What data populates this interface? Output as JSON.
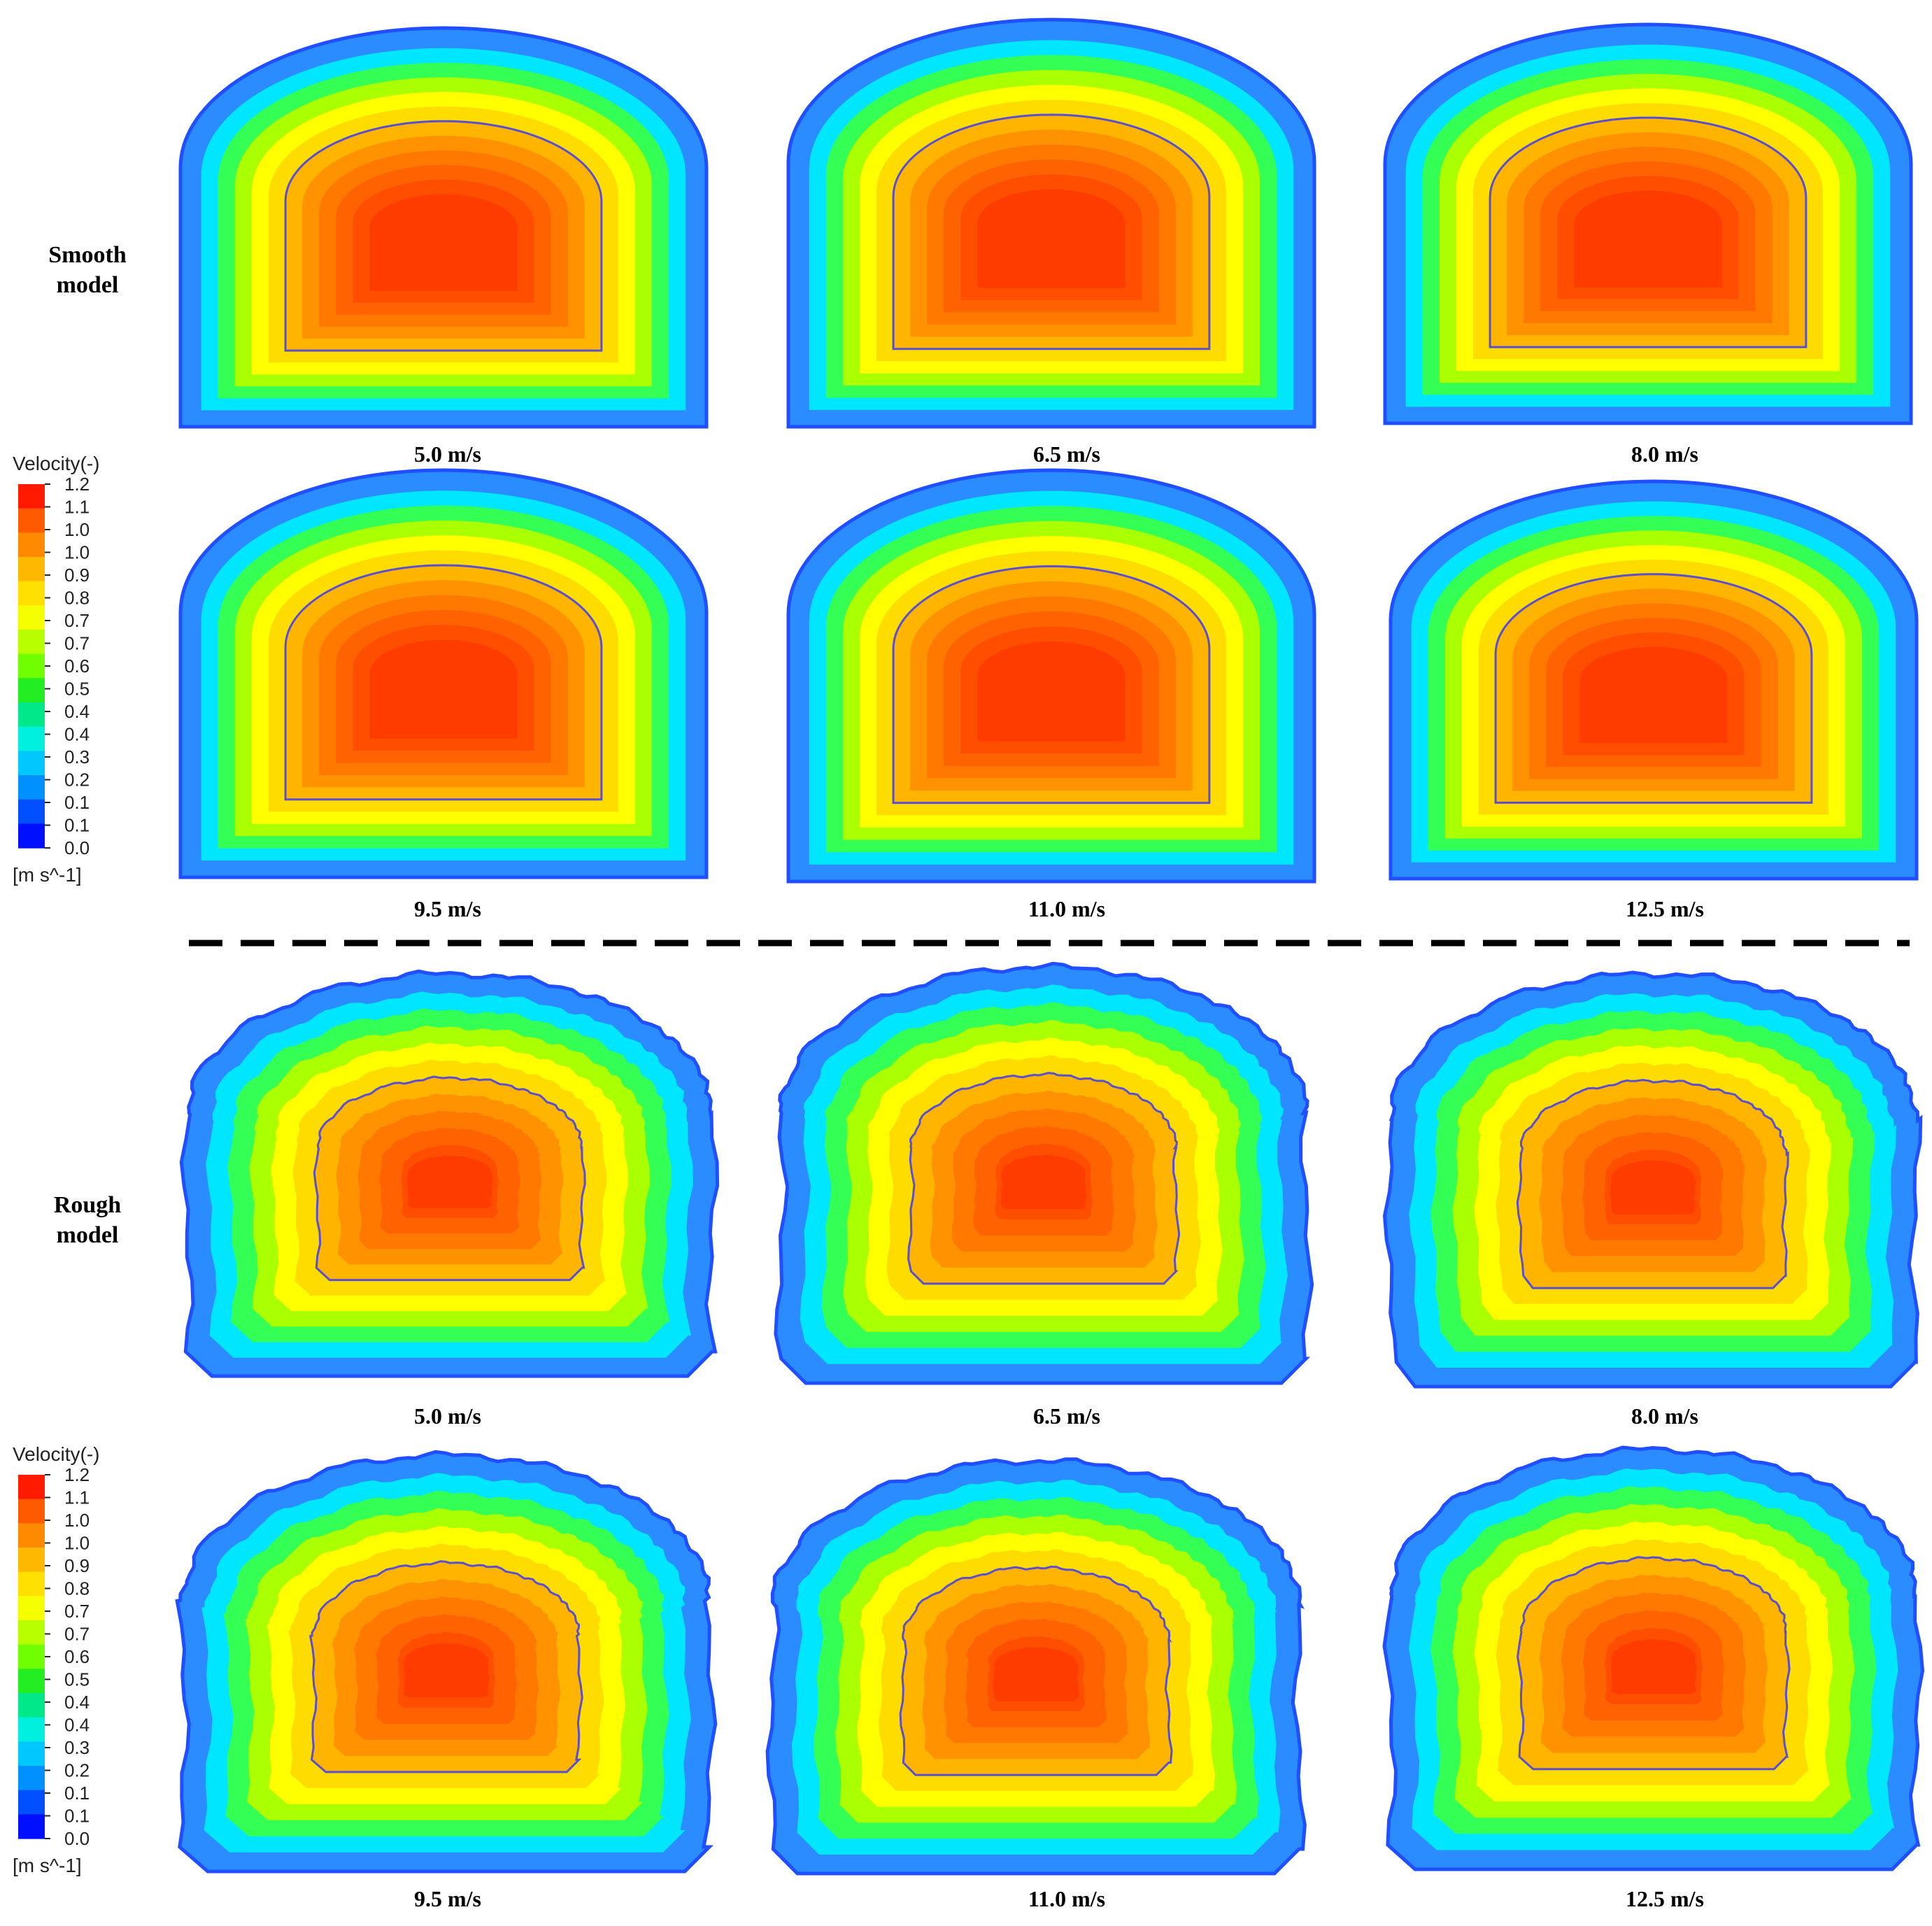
{
  "sections": [
    {
      "label_lines": [
        "Smooth",
        "model"
      ],
      "surface": "smooth",
      "panels": [
        {
          "caption": "5.0 m/s"
        },
        {
          "caption": "6.5 m/s"
        },
        {
          "caption": "8.0 m/s"
        },
        {
          "caption": "9.5 m/s"
        },
        {
          "caption": "11.0 m/s"
        },
        {
          "caption": "12.5 m/s"
        }
      ]
    },
    {
      "label_lines": [
        "Rough",
        "model"
      ],
      "surface": "rough",
      "panels": [
        {
          "caption": "5.0 m/s"
        },
        {
          "caption": "6.5 m/s"
        },
        {
          "caption": "8.0 m/s"
        },
        {
          "caption": "9.5 m/s"
        },
        {
          "caption": "11.0 m/s"
        },
        {
          "caption": "12.5 m/s"
        }
      ]
    }
  ],
  "legend": {
    "title": "Velocity(-)",
    "unit": "[m s^-1]",
    "ticks": [
      "1.2",
      "1.1",
      "1.0",
      "1.0",
      "0.9",
      "0.8",
      "0.7",
      "0.7",
      "0.6",
      "0.5",
      "0.4",
      "0.4",
      "0.3",
      "0.2",
      "0.1",
      "0.1",
      "0.0"
    ],
    "colors": [
      "#ff1a00",
      "#ff5a00",
      "#ff8a00",
      "#ffb800",
      "#ffe000",
      "#f5ff00",
      "#b8ff00",
      "#70ff00",
      "#22ee22",
      "#00e88a",
      "#00f0e0",
      "#00c8ff",
      "#0090ff",
      "#0050ff",
      "#0010ff"
    ]
  },
  "contour_colors": [
    "#2b8cff",
    "#00e6ff",
    "#33ff55",
    "#aaff00",
    "#ffff00",
    "#ffdc00",
    "#ffb400",
    "#ff9200",
    "#ff7800",
    "#ff6200",
    "#ff4e00",
    "#ff3c00"
  ],
  "line_color": "#5a4fcf"
}
